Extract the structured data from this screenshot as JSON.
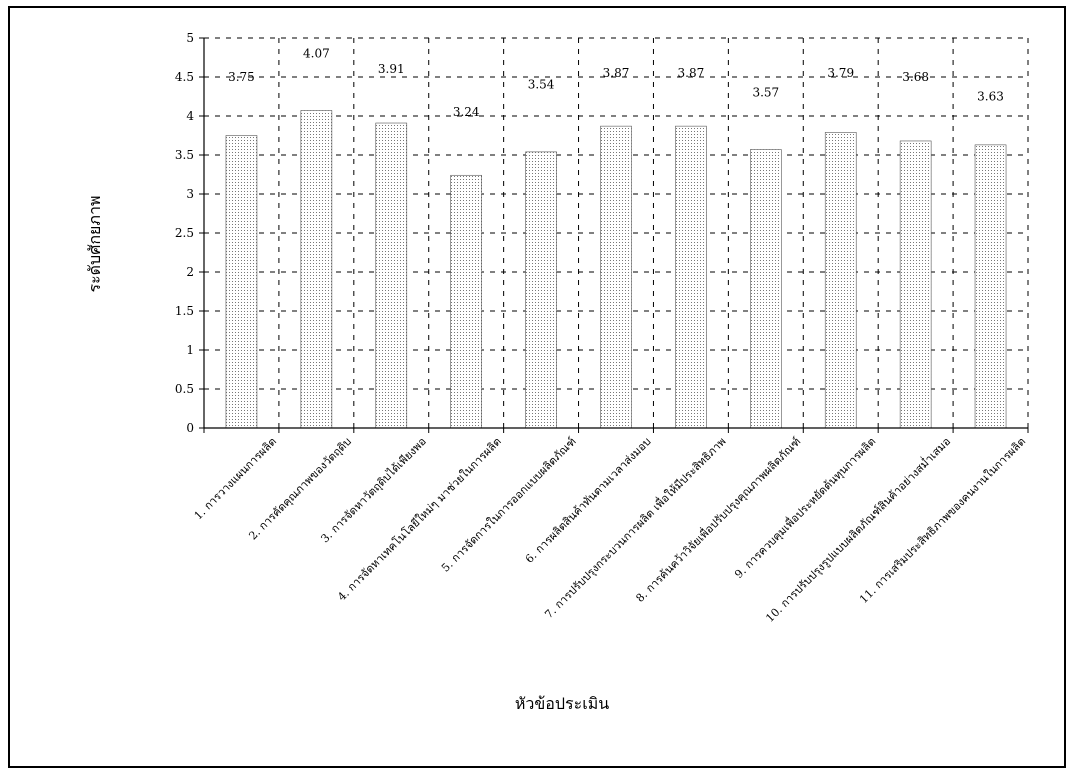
{
  "colors": {
    "background": "#ffffff",
    "frame": "#000000",
    "bar_fill": "#ffffff",
    "bar_dot": "#777777",
    "axis": "#000000"
  },
  "chart_data": {
    "type": "bar",
    "ylabel": "ระดับศักยภาพ",
    "xlabel": "หัวข้อประเมิน",
    "ylim": [
      0,
      5
    ],
    "yticks": [
      "0",
      "0.5",
      "1",
      "1.5",
      "2",
      "2.5",
      "3",
      "3.5",
      "4",
      "4.5",
      "5"
    ],
    "grid": "dashed",
    "categories": [
      "1. การวางแผนการผลิต",
      "2. การคัดคุณภาพของวัตถุดิบ",
      "3. การจัดหาวัตถุดิบได้เพียงพอ",
      "4. การจัดหาเทคโนโลยีใหม่ๆ มาช่วยในการผลิต",
      "5. การจัดการในการออกแบบผลิตภัณฑ์",
      "6. การผลิตสินค้าทันตามเวลาส่งมอบ",
      "7. การปรับปรุงกระบวนการผลิต เพื่อให้มีประสิทธิภาพ",
      "8. การค้นคว้าวิจัยเพื่อปรับปรุงคุณภาพผลิตภัณฑ์",
      "9. การควบคุมเพื่อประหยัดต้นทุนการผลิต",
      "10. การปรับปรุงรูปแบบผลิตภัณฑ์สินค้าอย่างสม่ำเสมอ",
      "11. การเสริมประสิทธิภาพของคนงานในการผลิต"
    ],
    "values": [
      3.75,
      4.07,
      3.91,
      3.24,
      3.54,
      3.87,
      3.87,
      3.57,
      3.79,
      3.68,
      3.63
    ],
    "value_labels": [
      "3.75",
      "4.07",
      "3.91",
      "3.24",
      "3.54",
      "3.87",
      "3.87",
      "3.57",
      "3.79",
      "3.68",
      "3.63"
    ],
    "label_heights": [
      4.45,
      4.75,
      4.55,
      4.0,
      4.35,
      4.5,
      4.5,
      4.25,
      4.5,
      4.45,
      4.2
    ]
  }
}
